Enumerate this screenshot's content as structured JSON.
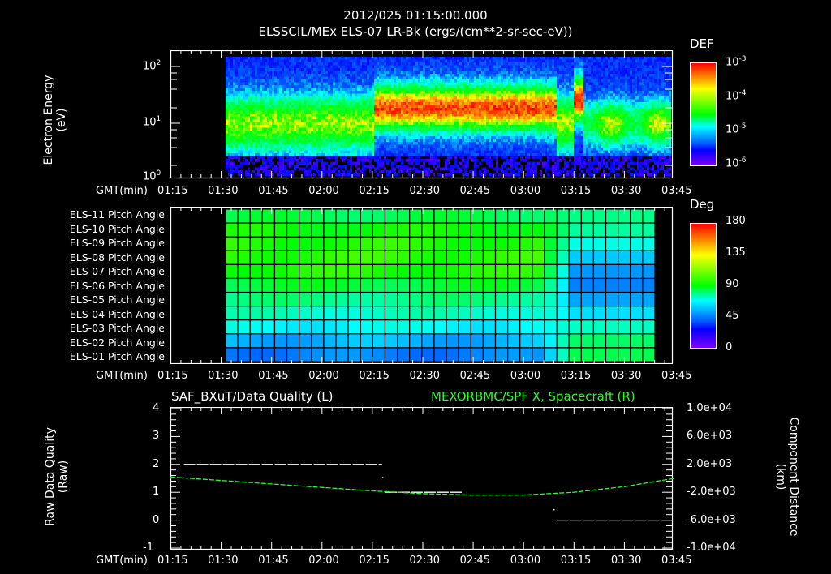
{
  "header": {
    "datetime": "2012/025 01:15:00.000",
    "subtitle": "ELSSCIL/MEx ELS-07 LR-Bk  (ergs/(cm**2-sr-sec-eV))"
  },
  "panel1": {
    "ylabel_line1": "Electron Energy",
    "ylabel_line2": "(eV)",
    "yticks": [
      {
        "base": "10",
        "exp": "2"
      },
      {
        "base": "10",
        "exp": "1"
      },
      {
        "base": "10",
        "exp": "0"
      }
    ],
    "colorbar": {
      "title": "DEF",
      "ticks": [
        {
          "base": "10",
          "exp": "-3"
        },
        {
          "base": "10",
          "exp": "-4"
        },
        {
          "base": "10",
          "exp": "-5"
        },
        {
          "base": "10",
          "exp": "-6"
        }
      ]
    }
  },
  "panel2": {
    "row_labels": [
      "ELS-11 Pitch Angle",
      "ELS-10 Pitch Angle",
      "ELS-09 Pitch Angle",
      "ELS-08 Pitch Angle",
      "ELS-07 Pitch Angle",
      "ELS-06 Pitch Angle",
      "ELS-05 Pitch Angle",
      "ELS-04 Pitch Angle",
      "ELS-03 Pitch Angle",
      "ELS-02 Pitch Angle",
      "ELS-01 Pitch Angle"
    ],
    "colorbar": {
      "title": "Deg",
      "ticks": [
        "180",
        "135",
        "90",
        "45",
        "0"
      ]
    }
  },
  "panel3": {
    "left_title": "SAF_BXuT/Data Quality (L)",
    "right_title": "MEXORBMC/SPF X, Spacecraft (R)",
    "right_title_color": "#22ff22",
    "left_ylabel_line1": "Raw Data Quality",
    "left_ylabel_line2": "(Raw)",
    "right_ylabel_line1": "Component Distance",
    "right_ylabel_line2": "(km)",
    "left_yticks": [
      "4",
      "3",
      "2",
      "1",
      "0",
      "-1"
    ],
    "right_yticks": [
      "1.0e+04",
      "6.0e+03",
      "2.0e+03",
      "-2.0e+03",
      "-6.0e+03",
      "-1.0e+04"
    ]
  },
  "time_axis": {
    "label": "GMT(min)",
    "ticks": [
      "01:15",
      "01:30",
      "01:45",
      "02:00",
      "02:15",
      "02:30",
      "02:45",
      "03:00",
      "03:15",
      "03:30",
      "03:45"
    ]
  },
  "chart_data": [
    {
      "type": "heatmap",
      "title": "ELSSCIL/MEx ELS-07 LR-Bk (ergs/(cm**2-sr-sec-eV))",
      "xlabel": "GMT(min)",
      "ylabel": "Electron Energy (eV)",
      "yscale": "log",
      "ylim": [
        1,
        150
      ],
      "x_ticks": [
        "01:15",
        "01:30",
        "01:45",
        "02:00",
        "02:15",
        "02:30",
        "02:45",
        "03:00",
        "03:15",
        "03:30",
        "03:45"
      ],
      "data_start": "01:31",
      "colorbar": {
        "label": "DEF",
        "scale": "log",
        "range": [
          1e-06,
          0.001
        ]
      },
      "features": [
        {
          "time_range": [
            "01:31",
            "02:20"
          ],
          "energy_peak_eV": 10,
          "level": "~1e-5"
        },
        {
          "time_range": [
            "02:20",
            "03:10"
          ],
          "energy_peak_eV": 25,
          "level": "~1e-4 to 3e-4"
        },
        {
          "time_range": [
            "03:22",
            "03:25"
          ],
          "energy_peak_eV": 30,
          "level": "~1e-4"
        },
        {
          "time_range": [
            "03:25",
            "03:50"
          ],
          "energy_peak_eV": 8,
          "level": "~1e-5"
        }
      ]
    },
    {
      "type": "heatmap",
      "title": "ELS Pitch Angle",
      "xlabel": "GMT(min)",
      "rows": [
        "ELS-11",
        "ELS-10",
        "ELS-09",
        "ELS-08",
        "ELS-07",
        "ELS-06",
        "ELS-05",
        "ELS-04",
        "ELS-03",
        "ELS-02",
        "ELS-01"
      ],
      "columns": 35,
      "data_range": [
        "01:31",
        "03:46"
      ],
      "colorbar": {
        "label": "Deg",
        "range": [
          0,
          180
        ],
        "ticks": [
          0,
          45,
          90,
          135,
          180
        ]
      },
      "approx_values_deg": {
        "before_03:10": [
          95,
          105,
          108,
          110,
          108,
          98,
          88,
          80,
          72,
          62,
          55
        ],
        "after_03:10": [
          88,
          85,
          75,
          65,
          58,
          55,
          60,
          68,
          80,
          92,
          95
        ]
      }
    },
    {
      "type": "line",
      "series": [
        {
          "name": "SAF_BXuT/Data Quality (L)",
          "axis": "left",
          "color": "#ffffff",
          "x": [
            "01:19",
            "02:18",
            "02:19",
            "02:42",
            "03:09",
            "03:10",
            "03:47"
          ],
          "values": [
            2,
            2,
            1,
            1,
            1,
            0,
            0
          ]
        },
        {
          "name": "MEXORBMC/SPF X, Spacecraft (R)",
          "axis": "right",
          "color": "#22ff22",
          "x": [
            "01:15",
            "01:30",
            "01:45",
            "02:00",
            "02:15",
            "02:30",
            "02:45",
            "03:00",
            "03:15",
            "03:30",
            "03:45",
            "03:50"
          ],
          "values": [
            200,
            -300,
            -800,
            -1300,
            -1800,
            -2200,
            -2400,
            -2400,
            -2000,
            -1200,
            0,
            400
          ]
        }
      ],
      "xlabel": "GMT(min)",
      "ylabel_left": "Raw Data Quality (Raw)",
      "ylabel_right": "Component Distance (km)",
      "ylim_left": [
        -1,
        4
      ],
      "ylim_right": [
        -10000,
        10000
      ]
    }
  ]
}
